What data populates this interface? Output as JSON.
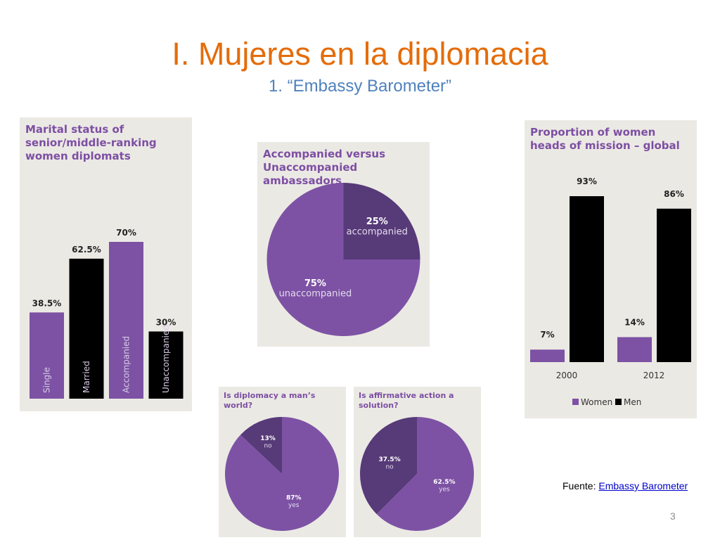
{
  "slide": {
    "title": "I. Mujeres en la diplomacia",
    "subtitle": "1. “Embassy Barometer”",
    "source_label": "Fuente:",
    "source_link": "Embassy Barometer",
    "page_number": "3"
  },
  "colors": {
    "title": "#e46c0a",
    "subtitle": "#4f81bd",
    "purple": "#7d52a4",
    "dark_purple": "#573a78",
    "black": "#000000",
    "panel_bg": "#ebe9e4",
    "panel_title": "#7d4fa3"
  },
  "chart_data": [
    {
      "id": "marital",
      "type": "bar",
      "title": "Marital status of senior/middle-ranking women diplomats",
      "categories": [
        "Single",
        "Married",
        "Accompanied",
        "Unaccompanied"
      ],
      "values": [
        38.5,
        62.5,
        70,
        30
      ],
      "value_labels": [
        "38.5%",
        "62.5%",
        "70%",
        "30%"
      ],
      "bar_colors": [
        "#7d52a4",
        "#000000",
        "#7d52a4",
        "#000000"
      ],
      "ylim": [
        0,
        100
      ]
    },
    {
      "id": "accompanied",
      "type": "pie",
      "title": "Accompanied versus Unaccompanied ambassadors",
      "slices": [
        {
          "label": "accompanied",
          "value": 25,
          "value_label": "25%",
          "color": "#573a78"
        },
        {
          "label": "unaccompanied",
          "value": 75,
          "value_label": "75%",
          "color": "#7d52a4"
        }
      ]
    },
    {
      "id": "heads_of_mission",
      "type": "bar",
      "title": "Proportion of women heads of mission – global",
      "categories": [
        "2000",
        "2012"
      ],
      "series": [
        {
          "name": "Women",
          "values": [
            7,
            14
          ],
          "value_labels": [
            "7%",
            "14%"
          ],
          "color": "#7d52a4"
        },
        {
          "name": "Men",
          "values": [
            93,
            86
          ],
          "value_labels": [
            "93%",
            "86%"
          ],
          "color": "#000000"
        }
      ],
      "legend": "bottom",
      "ylim": [
        0,
        100
      ]
    },
    {
      "id": "mans_world",
      "type": "pie",
      "title": "Is diplomacy a man’s world?",
      "slices": [
        {
          "label": "no",
          "value": 13,
          "value_label": "13%",
          "color": "#573a78"
        },
        {
          "label": "yes",
          "value": 87,
          "value_label": "87%",
          "color": "#7d52a4"
        }
      ]
    },
    {
      "id": "affirmative",
      "type": "pie",
      "title": "Is affirmative action a solution?",
      "slices": [
        {
          "label": "yes",
          "value": 62.5,
          "value_label": "62.5%",
          "color": "#7d52a4"
        },
        {
          "label": "no",
          "value": 37.5,
          "value_label": "37.5%",
          "color": "#573a78"
        }
      ]
    }
  ]
}
